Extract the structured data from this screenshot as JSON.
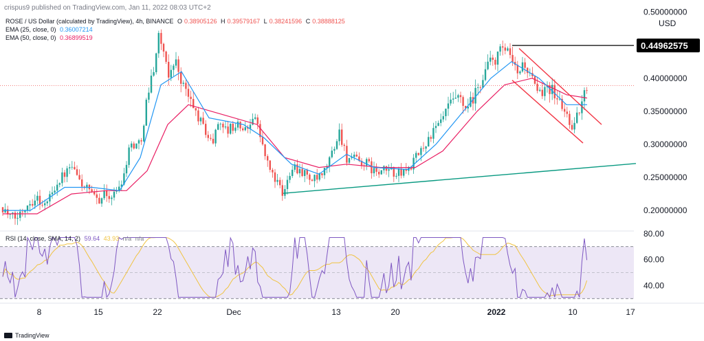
{
  "header": {
    "published": "crispus9 published on TradingView.com, Jan 11, 2022 08:03 UTC+2"
  },
  "footer": {
    "brand": "TradingView"
  },
  "legend": {
    "symbol": "ROSE / US Dollar (calculated by TradingView), 4h, BINANCE",
    "ohlc": {
      "o_label": "O",
      "o": "0.38905126",
      "h_label": "H",
      "h": "0.39579167",
      "l_label": "L",
      "l": "0.38241596",
      "c_label": "C",
      "c": "0.38888125"
    },
    "ema25_label": "EMA (25, close, 0)",
    "ema25_value": "0.36007214",
    "ema50_label": "EMA (50, close, 0)",
    "ema50_value": "0.36899519"
  },
  "rsi_legend": {
    "label": "RSI (14, close, SMA, 14, 2)",
    "rsi_value": "59.64",
    "sma_value": "43.93",
    "na1": "n/a",
    "na2": "n/a"
  },
  "chart_data": [
    {
      "type": "candlestick",
      "symbol": "ROSE / US Dollar",
      "timeframe": "4h",
      "currency_label": "USD",
      "y_axis_ticks": [
        "0.50000000",
        "0.40000000",
        "0.35000000",
        "0.30000000",
        "0.25000000",
        "0.20000000"
      ],
      "ylim": [
        0.17,
        0.51
      ],
      "x_tick_labels": [
        "8",
        "15",
        "22",
        "Dec",
        "13",
        "20",
        "2022",
        "10",
        "17"
      ],
      "price_label": "0.44962575",
      "last_price": 0.38888125,
      "colors": {
        "up": "#26a69a",
        "down": "#ef5350",
        "ema25": "#2196f3",
        "ema50": "#e91e63",
        "channel": "#f23645",
        "trendline": "#089981",
        "hline": "#000000",
        "last_price_line": "#ef5350"
      },
      "anchors": [
        {
          "t": 0,
          "p": 0.205
        },
        {
          "t": 10,
          "p": 0.19
        },
        {
          "t": 20,
          "p": 0.188
        },
        {
          "t": 35,
          "p": 0.21
        },
        {
          "t": 50,
          "p": 0.22
        },
        {
          "t": 60,
          "p": 0.205
        },
        {
          "t": 75,
          "p": 0.235
        },
        {
          "t": 85,
          "p": 0.25
        },
        {
          "t": 100,
          "p": 0.265
        },
        {
          "t": 115,
          "p": 0.24
        },
        {
          "t": 125,
          "p": 0.23
        },
        {
          "t": 135,
          "p": 0.215
        },
        {
          "t": 150,
          "p": 0.225
        },
        {
          "t": 160,
          "p": 0.22
        },
        {
          "t": 175,
          "p": 0.25
        },
        {
          "t": 185,
          "p": 0.3
        },
        {
          "t": 200,
          "p": 0.3
        },
        {
          "t": 210,
          "p": 0.37
        },
        {
          "t": 220,
          "p": 0.42
        },
        {
          "t": 228,
          "p": 0.47
        },
        {
          "t": 240,
          "p": 0.4
        },
        {
          "t": 250,
          "p": 0.43
        },
        {
          "t": 262,
          "p": 0.39
        },
        {
          "t": 275,
          "p": 0.36
        },
        {
          "t": 290,
          "p": 0.33
        },
        {
          "t": 305,
          "p": 0.3
        },
        {
          "t": 315,
          "p": 0.34
        },
        {
          "t": 325,
          "p": 0.32
        },
        {
          "t": 340,
          "p": 0.33
        },
        {
          "t": 355,
          "p": 0.32
        },
        {
          "t": 365,
          "p": 0.35
        },
        {
          "t": 375,
          "p": 0.31
        },
        {
          "t": 385,
          "p": 0.27
        },
        {
          "t": 400,
          "p": 0.24
        },
        {
          "t": 408,
          "p": 0.22
        },
        {
          "t": 420,
          "p": 0.27
        },
        {
          "t": 435,
          "p": 0.26
        },
        {
          "t": 450,
          "p": 0.245
        },
        {
          "t": 465,
          "p": 0.25
        },
        {
          "t": 480,
          "p": 0.29
        },
        {
          "t": 490,
          "p": 0.32
        },
        {
          "t": 500,
          "p": 0.28
        },
        {
          "t": 515,
          "p": 0.275
        },
        {
          "t": 530,
          "p": 0.27
        },
        {
          "t": 545,
          "p": 0.255
        },
        {
          "t": 560,
          "p": 0.262
        },
        {
          "t": 575,
          "p": 0.255
        },
        {
          "t": 590,
          "p": 0.262
        },
        {
          "t": 605,
          "p": 0.285
        },
        {
          "t": 620,
          "p": 0.31
        },
        {
          "t": 635,
          "p": 0.33
        },
        {
          "t": 645,
          "p": 0.35
        },
        {
          "t": 660,
          "p": 0.37
        },
        {
          "t": 675,
          "p": 0.35
        },
        {
          "t": 690,
          "p": 0.38
        },
        {
          "t": 705,
          "p": 0.42
        },
        {
          "t": 718,
          "p": 0.43
        },
        {
          "t": 728,
          "p": 0.445
        },
        {
          "t": 738,
          "p": 0.43
        },
        {
          "t": 748,
          "p": 0.405
        },
        {
          "t": 758,
          "p": 0.425
        },
        {
          "t": 768,
          "p": 0.4
        },
        {
          "t": 780,
          "p": 0.37
        },
        {
          "t": 790,
          "p": 0.395
        },
        {
          "t": 800,
          "p": 0.38
        },
        {
          "t": 812,
          "p": 0.36
        },
        {
          "t": 822,
          "p": 0.34
        },
        {
          "t": 830,
          "p": 0.325
        },
        {
          "t": 838,
          "p": 0.35
        },
        {
          "t": 845,
          "p": 0.37
        },
        {
          "t": 850,
          "p": 0.39
        }
      ],
      "ema25_path": [
        {
          "t": 0,
          "p": 0.2
        },
        {
          "t": 40,
          "p": 0.2
        },
        {
          "t": 90,
          "p": 0.235
        },
        {
          "t": 130,
          "p": 0.235
        },
        {
          "t": 170,
          "p": 0.23
        },
        {
          "t": 200,
          "p": 0.28
        },
        {
          "t": 230,
          "p": 0.39
        },
        {
          "t": 260,
          "p": 0.41
        },
        {
          "t": 300,
          "p": 0.34
        },
        {
          "t": 350,
          "p": 0.33
        },
        {
          "t": 380,
          "p": 0.31
        },
        {
          "t": 420,
          "p": 0.27
        },
        {
          "t": 460,
          "p": 0.255
        },
        {
          "t": 500,
          "p": 0.285
        },
        {
          "t": 540,
          "p": 0.265
        },
        {
          "t": 590,
          "p": 0.262
        },
        {
          "t": 630,
          "p": 0.3
        },
        {
          "t": 670,
          "p": 0.35
        },
        {
          "t": 710,
          "p": 0.4
        },
        {
          "t": 740,
          "p": 0.425
        },
        {
          "t": 780,
          "p": 0.4
        },
        {
          "t": 820,
          "p": 0.36
        },
        {
          "t": 850,
          "p": 0.36
        }
      ],
      "ema50_path": [
        {
          "t": 0,
          "p": 0.195
        },
        {
          "t": 50,
          "p": 0.195
        },
        {
          "t": 100,
          "p": 0.225
        },
        {
          "t": 150,
          "p": 0.23
        },
        {
          "t": 180,
          "p": 0.23
        },
        {
          "t": 210,
          "p": 0.26
        },
        {
          "t": 240,
          "p": 0.33
        },
        {
          "t": 270,
          "p": 0.36
        },
        {
          "t": 320,
          "p": 0.345
        },
        {
          "t": 370,
          "p": 0.33
        },
        {
          "t": 410,
          "p": 0.28
        },
        {
          "t": 460,
          "p": 0.265
        },
        {
          "t": 500,
          "p": 0.27
        },
        {
          "t": 550,
          "p": 0.265
        },
        {
          "t": 600,
          "p": 0.265
        },
        {
          "t": 640,
          "p": 0.29
        },
        {
          "t": 690,
          "p": 0.35
        },
        {
          "t": 730,
          "p": 0.39
        },
        {
          "t": 770,
          "p": 0.4
        },
        {
          "t": 820,
          "p": 0.375
        },
        {
          "t": 850,
          "p": 0.37
        }
      ],
      "drawings": {
        "hline": {
          "p": 0.4496
        },
        "trendline": [
          {
            "t": 412,
            "p": 0.226
          },
          {
            "t": 925,
            "p": 0.271
          }
        ],
        "channel_upper": [
          {
            "t": 755,
            "p": 0.445
          },
          {
            "t": 875,
            "p": 0.33
          }
        ],
        "channel_lower": [
          {
            "t": 745,
            "p": 0.397
          },
          {
            "t": 848,
            "p": 0.302
          }
        ]
      }
    },
    {
      "type": "line",
      "name": "RSI (14, close, SMA, 14, 2)",
      "y_axis_ticks": [
        "80.00",
        "60.00",
        "40.00"
      ],
      "ylim": [
        27,
        82
      ],
      "bands": [
        70,
        50,
        30
      ],
      "colors": {
        "rsi": "#7e57c2",
        "sma": "#f0c341",
        "band_fill": "#ede7f6"
      },
      "rsi_value": 59.64,
      "sma_value": 43.93
    }
  ]
}
